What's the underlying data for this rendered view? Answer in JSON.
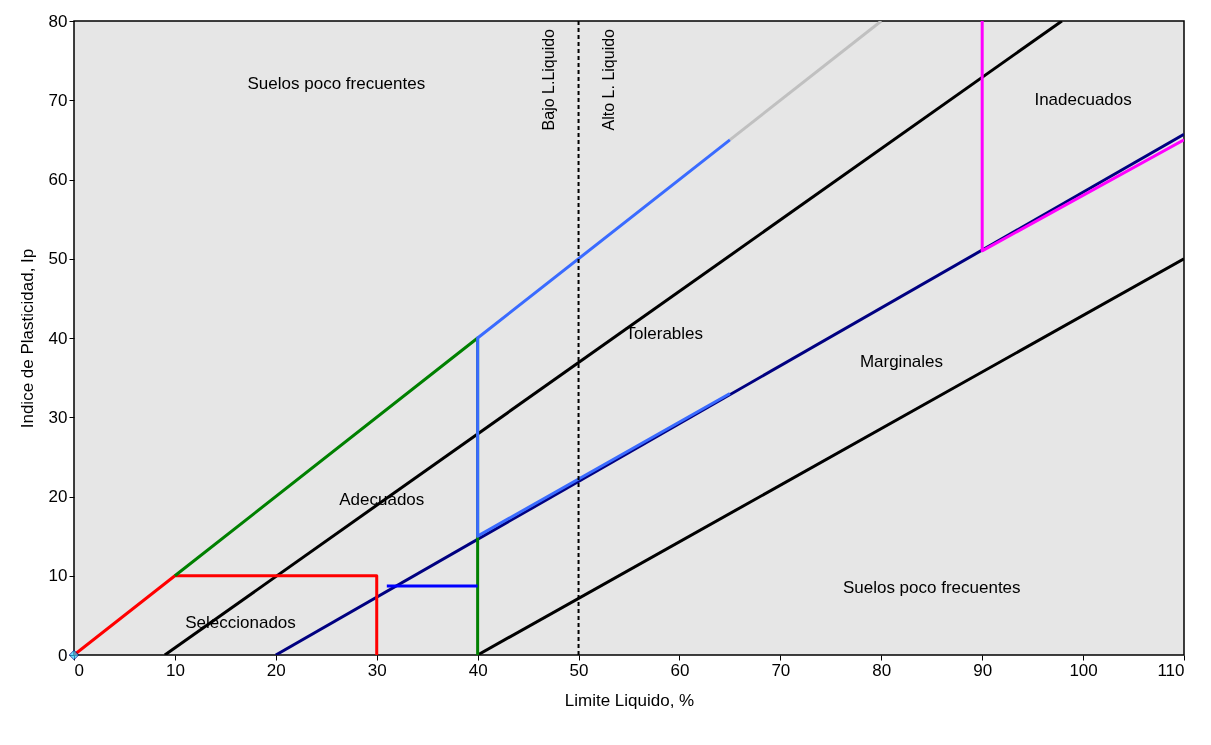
{
  "chart_data": {
    "type": "line",
    "xlabel": "Limite Liquido, %",
    "ylabel": "Indice de Plasticidad, Ip",
    "xlim": [
      0,
      110
    ],
    "xticks": [
      0,
      10,
      20,
      30,
      40,
      50,
      60,
      70,
      80,
      90,
      100,
      110
    ],
    "ylim": [
      0,
      80
    ],
    "yticks": [
      0,
      10,
      20,
      30,
      40,
      50,
      60,
      70,
      80
    ],
    "grid": false,
    "line_style": "solid",
    "marker": "none",
    "series": [
      {
        "color": "#c0c0c0",
        "x": [
          65,
          80
        ],
        "values": [
          65,
          80
        ]
      },
      {
        "color": "#000000",
        "x": [
          9,
          97.9
        ],
        "values": [
          0,
          80
        ]
      },
      {
        "color": "#000000",
        "x": [
          40,
          110
        ],
        "values": [
          0,
          50
        ]
      },
      {
        "color": "#000080",
        "x": [
          20,
          110
        ],
        "values": [
          0,
          65.7
        ]
      },
      {
        "color": "#ff0000",
        "x": [
          0,
          10,
          30,
          30
        ],
        "values": [
          0,
          10,
          10,
          0
        ]
      },
      {
        "color": "#008000",
        "x": [
          10,
          40,
          40
        ],
        "values": [
          10,
          40,
          0
        ]
      },
      {
        "color": "#3a6bff",
        "x": [
          65,
          40,
          40,
          65
        ],
        "values": [
          65,
          40,
          15,
          33
        ]
      },
      {
        "color": "#0000ff",
        "x": [
          31,
          40
        ],
        "values": [
          8.7,
          8.7
        ]
      },
      {
        "color": "#ff00ff",
        "x": [
          90,
          90,
          110
        ],
        "values": [
          80,
          51,
          65
        ]
      },
      {
        "type": "scatter",
        "marker": "diamond",
        "color": "#33ccff",
        "x": [
          0
        ],
        "values": [
          0
        ]
      }
    ],
    "ref_lines": [
      {
        "axis": "x",
        "value": 50,
        "label": "Bajo L.Liquido",
        "line_style": "dashed"
      }
    ],
    "annotations": [
      "Suelos poco frecuentes",
      "Suelos poco frecuentes",
      "Seleccionados",
      "Adecuados",
      "Tolerables",
      "Marginales",
      "Inadecuados",
      "Alto L. Liquido"
    ]
  }
}
